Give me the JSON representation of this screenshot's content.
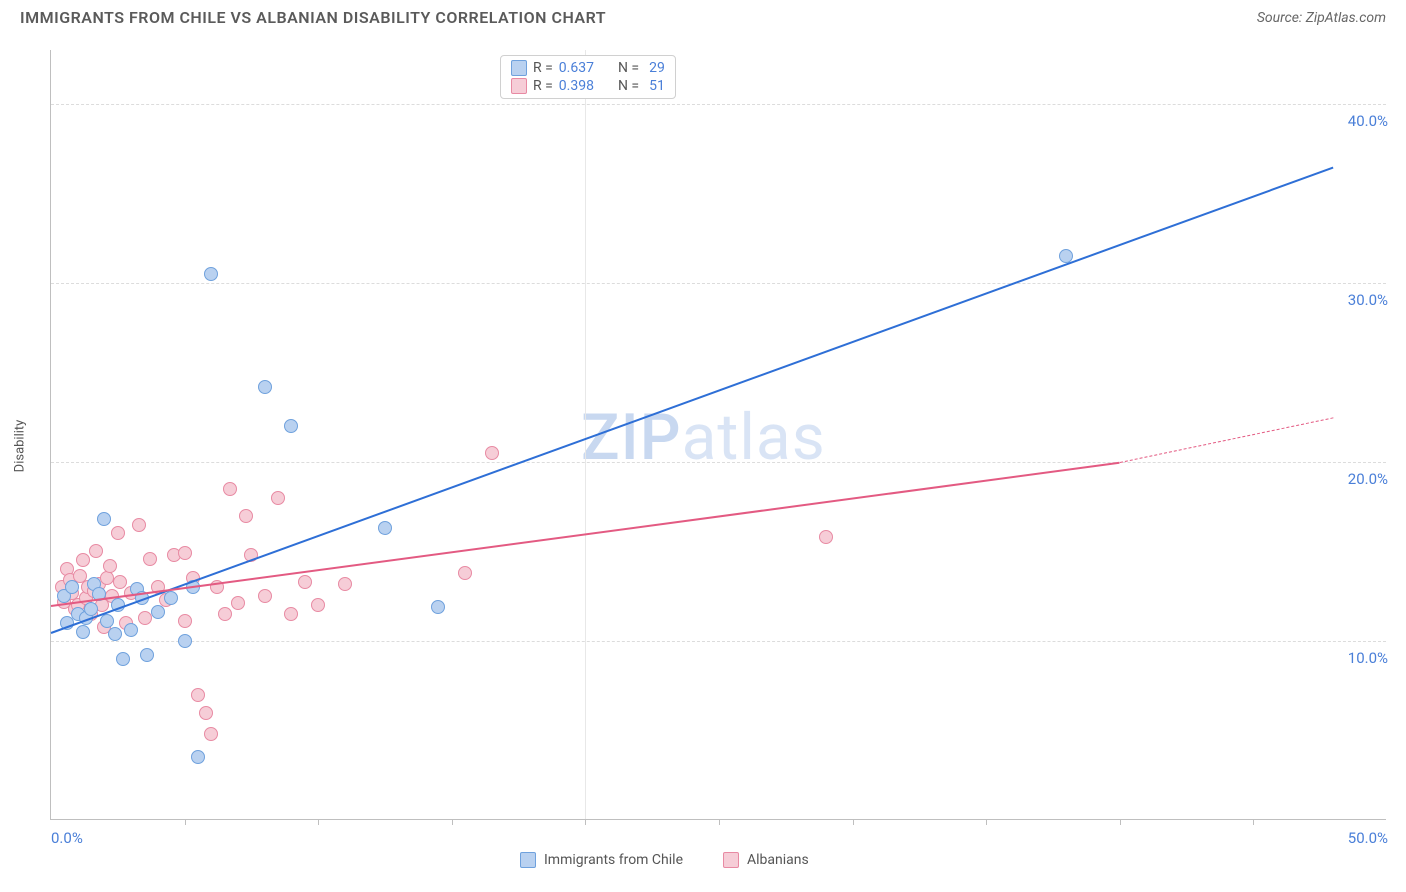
{
  "title": "IMMIGRANTS FROM CHILE VS ALBANIAN DISABILITY CORRELATION CHART",
  "source": "Source: ZipAtlas.com",
  "ylabel": "Disability",
  "watermark_left": "ZIP",
  "watermark_right": "atlas",
  "chart": {
    "type": "scatter",
    "xlim": [
      0,
      50
    ],
    "ylim": [
      0,
      43
    ],
    "x_axis_min_label": "0.0%",
    "x_axis_max_label": "50.0%",
    "y_grid_values": [
      10,
      20,
      30,
      40
    ],
    "y_grid_labels": [
      "10.0%",
      "20.0%",
      "30.0%",
      "40.0%"
    ],
    "x_tick_values": [
      5,
      10,
      15,
      20,
      25,
      30,
      35,
      40,
      45
    ],
    "background_color": "#ffffff",
    "grid_color": "#dcdcdc",
    "series": [
      {
        "key": "chile",
        "label": "Immigrants from Chile",
        "fill": "#b9d1f0",
        "stroke": "#6fa1dd",
        "line_color": "#2e6fd6",
        "r": "0.637",
        "n": "29",
        "trend": {
          "x1": 0,
          "y1": 10.5,
          "x2": 48,
          "y2": 36.5
        },
        "points": [
          [
            0.5,
            12.5
          ],
          [
            0.6,
            11.0
          ],
          [
            0.8,
            13.0
          ],
          [
            1.0,
            11.5
          ],
          [
            1.2,
            10.5
          ],
          [
            1.3,
            11.3
          ],
          [
            1.5,
            11.8
          ],
          [
            1.6,
            13.2
          ],
          [
            1.8,
            12.6
          ],
          [
            2.0,
            16.8
          ],
          [
            2.1,
            11.1
          ],
          [
            2.4,
            10.4
          ],
          [
            2.5,
            12.0
          ],
          [
            2.7,
            9.0
          ],
          [
            3.0,
            10.6
          ],
          [
            3.2,
            12.9
          ],
          [
            3.4,
            12.4
          ],
          [
            3.6,
            9.2
          ],
          [
            4.0,
            11.6
          ],
          [
            4.5,
            12.4
          ],
          [
            5.0,
            10.0
          ],
          [
            5.3,
            13.0
          ],
          [
            5.5,
            3.5
          ],
          [
            6.0,
            30.5
          ],
          [
            8.0,
            24.2
          ],
          [
            9.0,
            22.0
          ],
          [
            12.5,
            16.3
          ],
          [
            14.5,
            11.9
          ],
          [
            38.0,
            31.5
          ]
        ]
      },
      {
        "key": "albanians",
        "label": "Albanians",
        "fill": "#f6cdd7",
        "stroke": "#e88aa3",
        "line_color": "#e35a82",
        "r": "0.398",
        "n": "51",
        "trend": {
          "x1": 0,
          "y1": 12.0,
          "x2": 40,
          "y2": 20.0
        },
        "trend_dash": {
          "x1": 40,
          "y1": 20.0,
          "x2": 48,
          "y2": 22.5
        },
        "points": [
          [
            0.4,
            13.0
          ],
          [
            0.5,
            12.2
          ],
          [
            0.6,
            14.0
          ],
          [
            0.7,
            13.4
          ],
          [
            0.8,
            12.7
          ],
          [
            0.9,
            11.8
          ],
          [
            1.0,
            12.0
          ],
          [
            1.1,
            13.6
          ],
          [
            1.2,
            14.5
          ],
          [
            1.3,
            12.4
          ],
          [
            1.4,
            13.0
          ],
          [
            1.5,
            11.5
          ],
          [
            1.6,
            12.8
          ],
          [
            1.7,
            15.0
          ],
          [
            1.8,
            13.2
          ],
          [
            1.9,
            12.0
          ],
          [
            2.0,
            10.8
          ],
          [
            2.1,
            13.5
          ],
          [
            2.2,
            14.2
          ],
          [
            2.3,
            12.5
          ],
          [
            2.5,
            16.0
          ],
          [
            2.6,
            13.3
          ],
          [
            2.8,
            11.0
          ],
          [
            3.0,
            12.7
          ],
          [
            3.3,
            16.5
          ],
          [
            3.5,
            11.3
          ],
          [
            3.7,
            14.6
          ],
          [
            4.0,
            13.0
          ],
          [
            4.3,
            12.3
          ],
          [
            4.6,
            14.8
          ],
          [
            5.0,
            14.9
          ],
          [
            5.0,
            11.1
          ],
          [
            5.3,
            13.5
          ],
          [
            5.5,
            7.0
          ],
          [
            5.8,
            6.0
          ],
          [
            6.0,
            4.8
          ],
          [
            6.2,
            13.0
          ],
          [
            6.5,
            11.5
          ],
          [
            6.7,
            18.5
          ],
          [
            7.0,
            12.1
          ],
          [
            7.3,
            17.0
          ],
          [
            7.5,
            14.8
          ],
          [
            8.0,
            12.5
          ],
          [
            8.5,
            18.0
          ],
          [
            9.0,
            11.5
          ],
          [
            9.5,
            13.3
          ],
          [
            10.0,
            12.0
          ],
          [
            11.0,
            13.2
          ],
          [
            15.5,
            13.8
          ],
          [
            16.5,
            20.5
          ],
          [
            29.0,
            15.8
          ]
        ]
      }
    ]
  },
  "legend_top": {
    "r_label": "R =",
    "n_label": "N ="
  }
}
